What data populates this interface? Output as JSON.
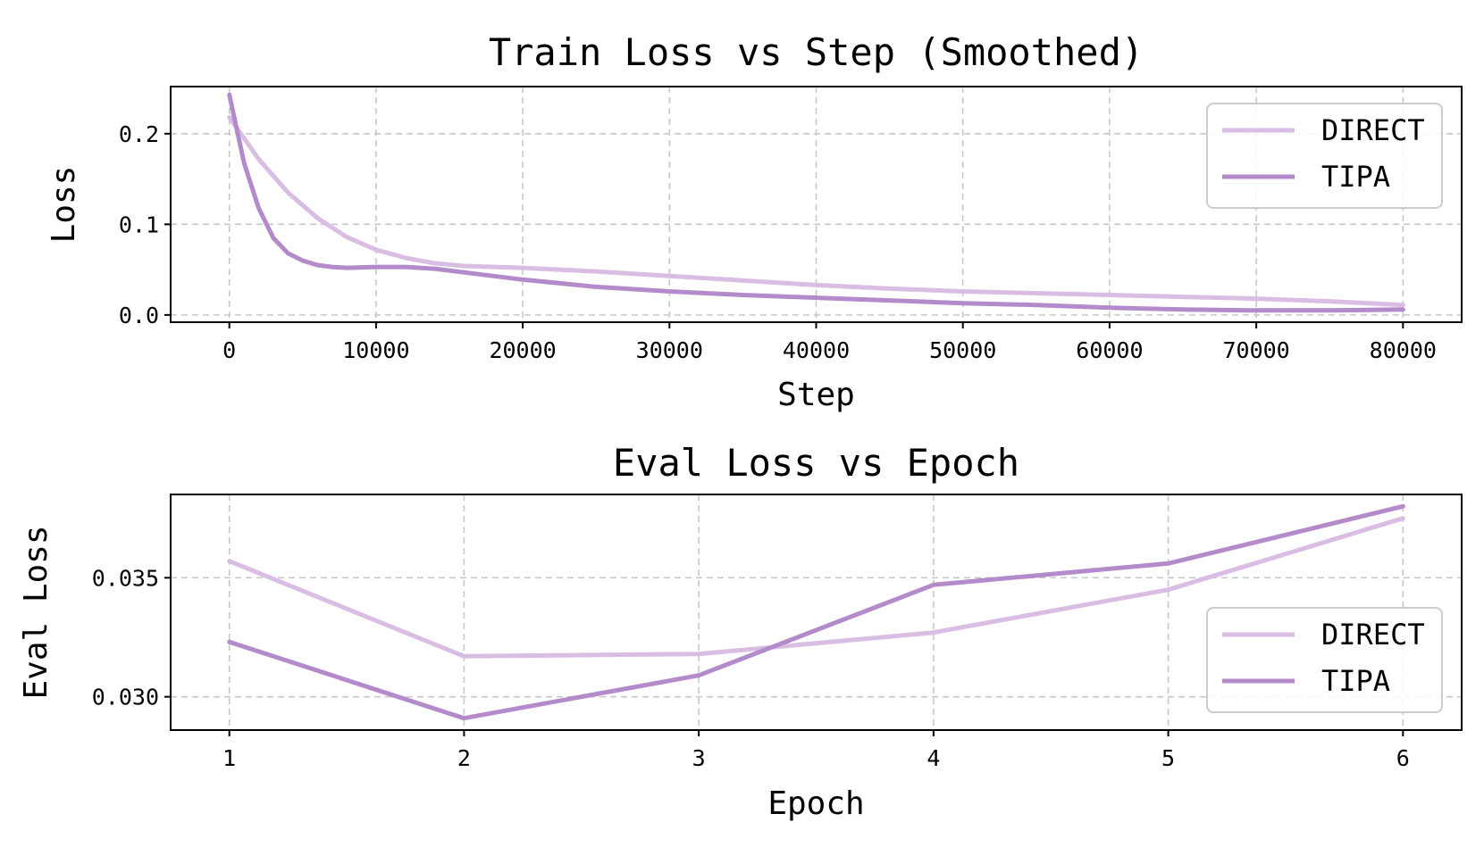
{
  "chart_data": [
    {
      "type": "line",
      "title": "Train Loss vs Step (Smoothed)",
      "xlabel": "Step",
      "ylabel": "Loss",
      "xlim": [
        -4000,
        84000
      ],
      "ylim": [
        -0.008,
        0.252
      ],
      "xticks": [
        0,
        10000,
        20000,
        30000,
        40000,
        50000,
        60000,
        70000,
        80000
      ],
      "yticks": [
        0.0,
        0.1,
        0.2
      ],
      "ytick_labels": [
        "0.0",
        "0.1",
        "0.2"
      ],
      "grid": true,
      "legend_position": "upper right",
      "series": [
        {
          "name": "DIRECT",
          "color": "#d9bde3",
          "x": [
            0,
            2000,
            4000,
            6000,
            8000,
            10000,
            12000,
            14000,
            16000,
            20000,
            25000,
            30000,
            35000,
            40000,
            45000,
            50000,
            55000,
            60000,
            65000,
            70000,
            75000,
            80000
          ],
          "y": [
            0.218,
            0.172,
            0.135,
            0.107,
            0.086,
            0.072,
            0.063,
            0.057,
            0.054,
            0.052,
            0.048,
            0.043,
            0.038,
            0.033,
            0.029,
            0.026,
            0.024,
            0.022,
            0.02,
            0.018,
            0.015,
            0.011
          ]
        },
        {
          "name": "TIPA",
          "color": "#b48bca",
          "x": [
            0,
            1000,
            2000,
            3000,
            4000,
            5000,
            6000,
            7000,
            8000,
            10000,
            12000,
            14000,
            16000,
            20000,
            25000,
            30000,
            35000,
            40000,
            45000,
            50000,
            55000,
            60000,
            65000,
            70000,
            75000,
            80000
          ],
          "y": [
            0.243,
            0.168,
            0.118,
            0.085,
            0.068,
            0.06,
            0.055,
            0.053,
            0.052,
            0.053,
            0.053,
            0.051,
            0.047,
            0.039,
            0.031,
            0.026,
            0.022,
            0.019,
            0.016,
            0.013,
            0.011,
            0.008,
            0.006,
            0.005,
            0.005,
            0.006
          ]
        }
      ]
    },
    {
      "type": "line",
      "title": "Eval Loss vs Epoch",
      "xlabel": "Epoch",
      "ylabel": "Eval Loss",
      "xlim": [
        0.75,
        6.25
      ],
      "ylim": [
        0.0286,
        0.0385
      ],
      "xticks": [
        1,
        2,
        3,
        4,
        5,
        6
      ],
      "yticks": [
        0.03,
        0.035
      ],
      "ytick_labels": [
        "0.030",
        "0.035"
      ],
      "grid": true,
      "legend_position": "lower right",
      "series": [
        {
          "name": "DIRECT",
          "color": "#d9bde3",
          "x": [
            1,
            2,
            3,
            4,
            5,
            6
          ],
          "y": [
            0.0357,
            0.0317,
            0.0318,
            0.0327,
            0.0345,
            0.0375
          ]
        },
        {
          "name": "TIPA",
          "color": "#b48bca",
          "x": [
            1,
            2,
            3,
            4,
            5,
            6
          ],
          "y": [
            0.0323,
            0.0291,
            0.0309,
            0.0347,
            0.0356,
            0.038
          ]
        }
      ]
    }
  ]
}
